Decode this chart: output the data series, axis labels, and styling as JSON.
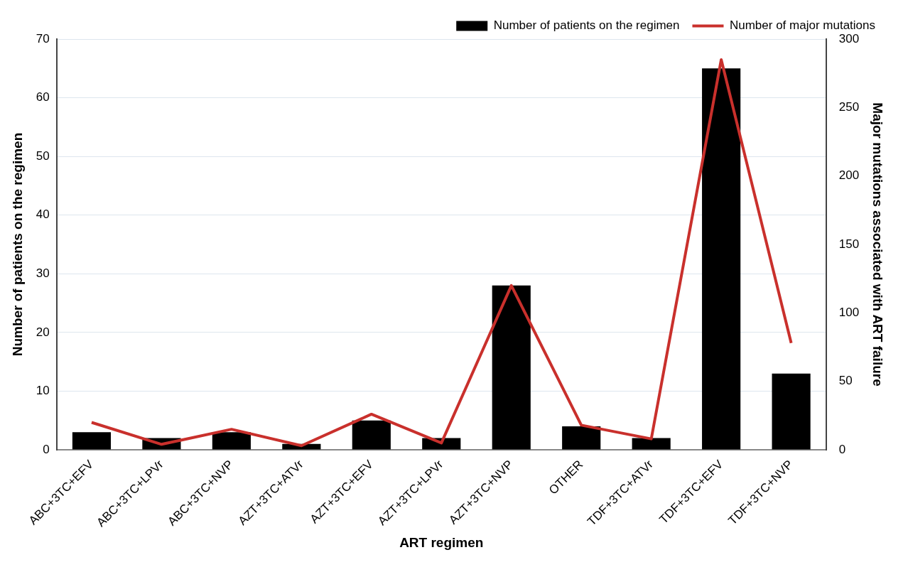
{
  "chart_data": {
    "type": "bar",
    "xlabel": "ART regimen",
    "ylabel": "Number of patients on the regimen",
    "y2label": "Major mutations associated with ART failure",
    "categories": [
      "ABC+3TC+EFV",
      "ABC+3TC+LPVr",
      "ABC+3TC+NVP",
      "AZT+3TC+ATVr",
      "AZT+3TC+EFV",
      "AZT+3TC+LPVr",
      "AZT+3TC+NVP",
      "OTHER",
      "TDF+3TC+ATVr",
      "TDF+3TC+EFV",
      "TDF+3TC+NVP"
    ],
    "series": [
      {
        "name": "Number of patients on the regimen",
        "color": "#000000",
        "values": [
          3,
          2,
          3,
          1,
          5,
          2,
          28,
          4,
          2,
          65,
          13
        ]
      },
      {
        "name": "Number of major mutations",
        "type": "line",
        "axis": "y2",
        "color": "#c9302c",
        "values": [
          20,
          4,
          15,
          3,
          26,
          5,
          120,
          18,
          8,
          285,
          78
        ]
      }
    ],
    "ylim": [
      0,
      70
    ],
    "yticks": [
      0,
      10,
      20,
      30,
      40,
      50,
      60,
      70
    ],
    "y2lim": [
      0,
      300
    ],
    "y2ticks": [
      0,
      50,
      100,
      150,
      200,
      250,
      300
    ],
    "grid": "y",
    "legend": "top right",
    "marker": "none",
    "line_style": "solid"
  }
}
